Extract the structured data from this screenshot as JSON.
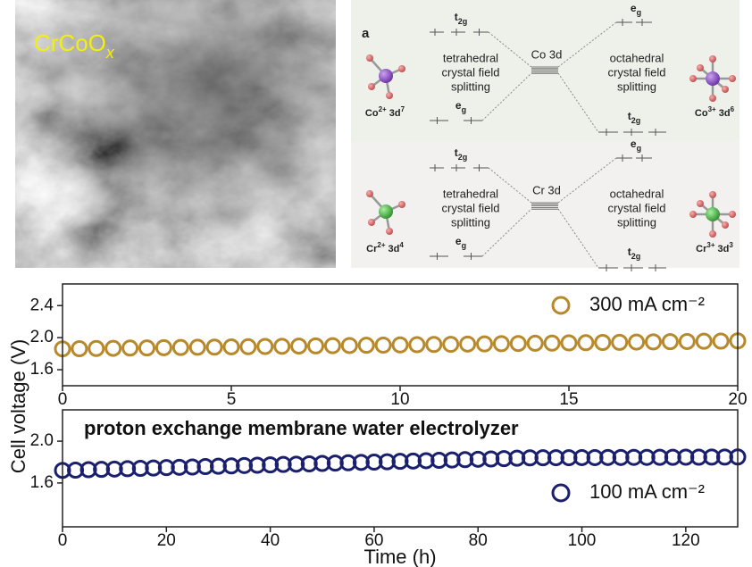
{
  "image": {
    "label": "CrCoO",
    "subscript": "x"
  },
  "diagram": {
    "panel_label": "a",
    "rows": [
      {
        "center": "Co 3d",
        "left_split": [
          "tetrahedral",
          "crystal field",
          "splitting"
        ],
        "right_split": [
          "octahedral",
          "crystal field",
          "splitting"
        ],
        "left_upper": {
          "main": "t",
          "sub": "2g"
        },
        "left_lower": {
          "main": "e",
          "sub": "g"
        },
        "right_upper": {
          "main": "e",
          "sub": "g"
        },
        "right_lower": {
          "main": "t",
          "sub": "2g"
        },
        "left_ion": {
          "main": "Co",
          "sup": "2+",
          "tail": " 3d",
          "sup2": "7"
        },
        "right_ion": {
          "main": "Co",
          "sup": "3+",
          "tail": " 3d",
          "sup2": "6"
        }
      },
      {
        "center": "Cr 3d",
        "left_split": [
          "tetrahedral",
          "crystal field",
          "splitting"
        ],
        "right_split": [
          "octahedral",
          "crystal field",
          "splitting"
        ],
        "left_upper": {
          "main": "t",
          "sub": "2g"
        },
        "left_lower": {
          "main": "e",
          "sub": "g"
        },
        "right_upper": {
          "main": "e",
          "sub": "g"
        },
        "right_lower": {
          "main": "t",
          "sub": "2g"
        },
        "left_ion": {
          "main": "Cr",
          "sup": "2+",
          "tail": " 3d",
          "sup2": "4"
        },
        "right_ion": {
          "main": "Cr",
          "sup": "3+",
          "tail": " 3d",
          "sup2": "3"
        }
      }
    ]
  },
  "figure": {
    "ylabel": "Cell voltage (V)"
  },
  "chart_data": [
    {
      "type": "scatter",
      "xlim": [
        0,
        20
      ],
      "xticks": [
        0,
        5,
        10,
        15,
        20
      ],
      "ylim": [
        1.4,
        2.67
      ],
      "yticks": [
        1.6,
        {
          "value": 2,
          "label": "2.0"
        },
        2.4
      ],
      "legend": "upper right",
      "series": [
        {
          "name": "300 mA cm⁻²",
          "color": "#b8892a",
          "x": [
            0,
            0.5,
            1,
            1.5,
            2,
            2.5,
            3,
            3.5,
            4,
            4.5,
            5,
            5.5,
            6,
            6.5,
            7,
            7.5,
            8,
            8.5,
            9,
            9.5,
            10,
            10.5,
            11,
            11.5,
            12,
            12.5,
            13,
            13.5,
            14,
            14.5,
            15,
            15.5,
            16,
            16.5,
            17,
            17.5,
            18,
            18.5,
            19,
            19.5,
            20
          ],
          "values": [
            1.86,
            1.862,
            1.865,
            1.867,
            1.87,
            1.872,
            1.875,
            1.877,
            1.88,
            1.882,
            1.885,
            1.887,
            1.89,
            1.892,
            1.895,
            1.897,
            1.9,
            1.902,
            1.905,
            1.907,
            1.91,
            1.912,
            1.915,
            1.917,
            1.92,
            1.922,
            1.925,
            1.927,
            1.93,
            1.932,
            1.935,
            1.937,
            1.94,
            1.942,
            1.945,
            1.947,
            1.95,
            1.952,
            1.955,
            1.957,
            1.96
          ]
        }
      ]
    },
    {
      "type": "scatter",
      "annotation": "proton exchange membrane water electrolyzer",
      "xlabel": "Time (h)",
      "xlim": [
        0,
        130
      ],
      "xticks": [
        0,
        20,
        40,
        60,
        80,
        100,
        120
      ],
      "ylim": [
        1.18,
        2.3
      ],
      "yticks": [
        1.6,
        {
          "value": 2,
          "label": "2.0"
        }
      ],
      "legend": "lower right",
      "series": [
        {
          "name": "100 mA cm⁻²",
          "color": "#1a1f6e",
          "x": [
            0,
            2.5,
            5,
            7.5,
            10,
            12.5,
            15,
            17.5,
            20,
            22.5,
            25,
            27.5,
            30,
            32.5,
            35,
            37.5,
            40,
            42.5,
            45,
            47.5,
            50,
            52.5,
            55,
            57.5,
            60,
            62.5,
            65,
            67.5,
            70,
            72.5,
            75,
            77.5,
            80,
            82.5,
            85,
            87.5,
            90,
            92.5,
            95,
            97.5,
            100,
            102.5,
            105,
            107.5,
            110,
            112.5,
            115,
            117.5,
            120,
            122.5,
            125,
            127.5,
            130
          ],
          "values": [
            1.72,
            1.723,
            1.727,
            1.73,
            1.733,
            1.737,
            1.74,
            1.743,
            1.747,
            1.75,
            1.753,
            1.757,
            1.76,
            1.763,
            1.767,
            1.77,
            1.773,
            1.777,
            1.78,
            1.783,
            1.787,
            1.79,
            1.793,
            1.797,
            1.8,
            1.803,
            1.807,
            1.81,
            1.813,
            1.817,
            1.82,
            1.823,
            1.827,
            1.83,
            1.833,
            1.837,
            1.84,
            1.841,
            1.842,
            1.842,
            1.843,
            1.843,
            1.844,
            1.844,
            1.845,
            1.845,
            1.846,
            1.846,
            1.847,
            1.847,
            1.848,
            1.848,
            1.849
          ]
        }
      ]
    }
  ]
}
